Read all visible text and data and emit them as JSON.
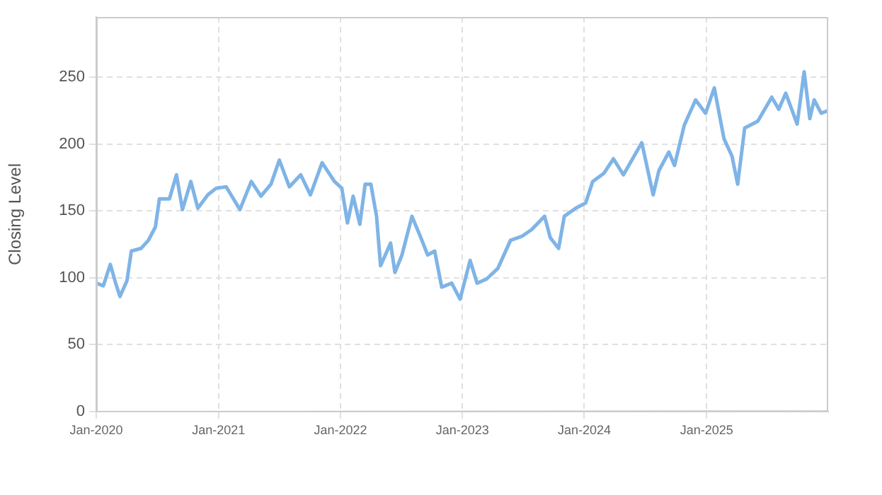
{
  "chart_data": {
    "type": "line",
    "ylabel": "Closing Level",
    "xlim": [
      "2020-01-01",
      "2025-12-31"
    ],
    "ylim": [
      0,
      295
    ],
    "yticks": [
      0,
      50,
      100,
      150,
      200,
      250
    ],
    "xticks": [
      {
        "value": "2020-01",
        "label": "Jan-2020"
      },
      {
        "value": "2021-01",
        "label": "Jan-2021"
      },
      {
        "value": "2022-01",
        "label": "Jan-2022"
      },
      {
        "value": "2023-01",
        "label": "Jan-2023"
      },
      {
        "value": "2024-01",
        "label": "Jan-2024"
      },
      {
        "value": "2025-01",
        "label": "Jan-2025"
      }
    ],
    "grid": true,
    "legend": false,
    "marker": "none",
    "line_style": "solid",
    "x": [
      "2020-01-01",
      "2020-01-22",
      "2020-02-12",
      "2020-02-28",
      "2020-03-12",
      "2020-04-02",
      "2020-04-15",
      "2020-05-14",
      "2020-06-05",
      "2020-06-26",
      "2020-07-08",
      "2020-08-07",
      "2020-08-28",
      "2020-09-15",
      "2020-10-10",
      "2020-10-31",
      "2020-11-30",
      "2020-12-25",
      "2021-01-24",
      "2021-03-06",
      "2021-04-09",
      "2021-05-08",
      "2021-06-07",
      "2021-07-02",
      "2021-08-01",
      "2021-09-04",
      "2021-10-03",
      "2021-11-07",
      "2021-12-14",
      "2022-01-05",
      "2022-01-22",
      "2022-02-08",
      "2022-02-28",
      "2022-03-16",
      "2022-04-02",
      "2022-04-19",
      "2022-05-01",
      "2022-05-31",
      "2022-06-13",
      "2022-07-04",
      "2022-08-03",
      "2022-08-28",
      "2022-09-19",
      "2022-10-10",
      "2022-10-31",
      "2022-11-30",
      "2022-12-25",
      "2023-01-24",
      "2023-02-14",
      "2023-03-14",
      "2023-04-17",
      "2023-05-25",
      "2023-06-28",
      "2023-07-27",
      "2023-09-04",
      "2023-09-21",
      "2023-10-16",
      "2023-11-02",
      "2023-12-06",
      "2024-01-05",
      "2024-01-26",
      "2024-02-28",
      "2024-03-28",
      "2024-04-27",
      "2024-06-21",
      "2024-07-25",
      "2024-08-11",
      "2024-09-10",
      "2024-09-27",
      "2024-10-26",
      "2024-11-29",
      "2024-12-29",
      "2025-01-24",
      "2025-02-22",
      "2025-03-18",
      "2025-04-04",
      "2025-04-25",
      "2025-06-03",
      "2025-07-15",
      "2025-08-05",
      "2025-08-26",
      "2025-09-29",
      "2025-10-20",
      "2025-11-06",
      "2025-11-19",
      "2025-12-10",
      "2025-12-31"
    ],
    "series": [
      {
        "color": "#7fb4e6",
        "values": [
          96,
          94,
          110,
          96,
          86,
          98,
          120,
          122,
          128,
          138,
          159,
          159,
          177,
          151,
          172,
          152,
          162,
          167,
          168,
          151,
          172,
          161,
          170,
          188,
          168,
          177,
          162,
          186,
          172,
          167,
          141,
          161,
          140,
          170,
          170,
          146,
          109,
          126,
          104,
          117,
          146,
          131,
          117,
          120,
          93,
          96,
          84,
          113,
          96,
          99,
          107,
          128,
          131,
          136,
          146,
          130,
          122,
          146,
          152,
          156,
          172,
          178,
          189,
          177,
          201,
          162,
          180,
          194,
          184,
          214,
          233,
          223,
          242,
          204,
          191,
          170,
          212,
          217,
          235,
          226,
          238,
          215,
          254,
          219,
          233,
          223,
          225
        ]
      }
    ]
  }
}
